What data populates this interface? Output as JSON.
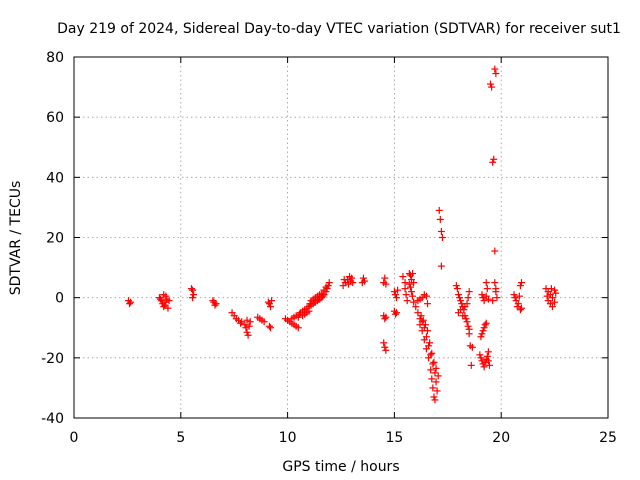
{
  "chart_data": {
    "type": "scatter",
    "title": "Day 219 of 2024, Sidereal Day-to-day VTEC variation (SDTVAR) for receiver sut1",
    "xlabel": "GPS time / hours",
    "ylabel": "SDTVAR / TECUs",
    "xlim": [
      0,
      25
    ],
    "ylim": [
      -40,
      80
    ],
    "xticks": [
      0,
      5,
      10,
      15,
      20,
      25
    ],
    "yticks": [
      -40,
      -20,
      0,
      20,
      40,
      60,
      80
    ],
    "grid": true,
    "marker": "+",
    "color": "#ff0000",
    "series": [
      {
        "name": "SDTVAR",
        "points": [
          [
            2.55,
            -1.0
          ],
          [
            2.6,
            -2.0
          ],
          [
            2.65,
            -1.5
          ],
          [
            4.0,
            0.0
          ],
          [
            4.05,
            -0.5
          ],
          [
            4.1,
            -1.0
          ],
          [
            4.15,
            -2.0
          ],
          [
            4.2,
            -3.0
          ],
          [
            4.25,
            -2.5
          ],
          [
            4.3,
            -1.5
          ],
          [
            4.35,
            -0.5
          ],
          [
            4.3,
            0.5
          ],
          [
            4.4,
            -3.5
          ],
          [
            4.45,
            -1.0
          ],
          [
            4.2,
            1.0
          ],
          [
            5.5,
            3.0
          ],
          [
            5.55,
            2.5
          ],
          [
            5.6,
            1.0
          ],
          [
            5.55,
            0.0
          ],
          [
            6.5,
            -1.0
          ],
          [
            6.55,
            -1.5
          ],
          [
            6.6,
            -2.5
          ],
          [
            6.65,
            -2.0
          ],
          [
            7.4,
            -5.0
          ],
          [
            7.5,
            -6.0
          ],
          [
            7.6,
            -7.0
          ],
          [
            7.7,
            -7.5
          ],
          [
            7.8,
            -8.5
          ],
          [
            7.85,
            -8.0
          ],
          [
            8.0,
            -9.0
          ],
          [
            8.05,
            -10.0
          ],
          [
            8.1,
            -11.5
          ],
          [
            8.15,
            -12.5
          ],
          [
            8.2,
            -9.5
          ],
          [
            8.25,
            -8.0
          ],
          [
            8.1,
            -7.5
          ],
          [
            8.6,
            -6.5
          ],
          [
            8.7,
            -7.0
          ],
          [
            8.8,
            -7.5
          ],
          [
            8.9,
            -8.0
          ],
          [
            9.1,
            -1.5
          ],
          [
            9.15,
            -2.0
          ],
          [
            9.2,
            -3.0
          ],
          [
            9.25,
            -1.0
          ],
          [
            9.15,
            -9.5
          ],
          [
            9.2,
            -10.0
          ],
          [
            9.9,
            -7.0
          ],
          [
            10.0,
            -7.5
          ],
          [
            10.1,
            -8.0
          ],
          [
            10.2,
            -8.5
          ],
          [
            10.3,
            -9.0
          ],
          [
            10.4,
            -9.5
          ],
          [
            10.5,
            -10.0
          ],
          [
            10.2,
            -7.0
          ],
          [
            10.3,
            -6.5
          ],
          [
            10.4,
            -6.0
          ],
          [
            10.5,
            -6.5
          ],
          [
            10.55,
            -5.5
          ],
          [
            10.6,
            -5.0
          ],
          [
            10.7,
            -4.5
          ],
          [
            10.8,
            -4.0
          ],
          [
            10.9,
            -3.5
          ],
          [
            10.7,
            -6.0
          ],
          [
            10.8,
            -5.5
          ],
          [
            10.9,
            -5.0
          ],
          [
            11.0,
            -4.5
          ],
          [
            11.0,
            -3.0
          ],
          [
            11.1,
            -2.5
          ],
          [
            11.2,
            -2.0
          ],
          [
            11.3,
            -1.5
          ],
          [
            11.4,
            -1.0
          ],
          [
            11.5,
            -0.5
          ],
          [
            11.6,
            0.0
          ],
          [
            11.7,
            1.0
          ],
          [
            11.8,
            2.0
          ],
          [
            11.85,
            3.0
          ],
          [
            11.9,
            4.0
          ],
          [
            11.95,
            5.0
          ],
          [
            11.1,
            -1.0
          ],
          [
            11.2,
            -0.5
          ],
          [
            11.3,
            0.0
          ],
          [
            11.4,
            0.5
          ],
          [
            11.5,
            1.0
          ],
          [
            11.6,
            1.5
          ],
          [
            11.7,
            2.5
          ],
          [
            11.8,
            3.5
          ],
          [
            11.05,
            -2.0
          ],
          [
            11.25,
            -1.5
          ],
          [
            11.45,
            -0.5
          ],
          [
            11.65,
            0.5
          ],
          [
            12.6,
            4.0
          ],
          [
            12.7,
            5.0
          ],
          [
            12.8,
            6.0
          ],
          [
            12.9,
            7.0
          ],
          [
            13.0,
            6.5
          ],
          [
            13.05,
            5.0
          ],
          [
            12.65,
            6.0
          ],
          [
            12.85,
            4.5
          ],
          [
            12.95,
            5.5
          ],
          [
            13.5,
            5.0
          ],
          [
            13.55,
            6.5
          ],
          [
            13.6,
            5.5
          ],
          [
            14.5,
            5.0
          ],
          [
            14.55,
            6.5
          ],
          [
            14.6,
            4.5
          ],
          [
            14.5,
            -6.0
          ],
          [
            14.55,
            -7.0
          ],
          [
            14.6,
            -6.5
          ],
          [
            14.5,
            -15.0
          ],
          [
            14.55,
            -16.5
          ],
          [
            14.6,
            -17.5
          ],
          [
            15.0,
            2.0
          ],
          [
            15.05,
            1.0
          ],
          [
            15.1,
            0.0
          ],
          [
            15.15,
            2.5
          ],
          [
            15.0,
            -4.5
          ],
          [
            15.05,
            -5.5
          ],
          [
            15.1,
            -5.0
          ],
          [
            15.4,
            7.0
          ],
          [
            15.5,
            5.0
          ],
          [
            15.55,
            1.0
          ],
          [
            15.6,
            -1.0
          ],
          [
            15.5,
            3.0
          ],
          [
            15.7,
            8.0
          ],
          [
            15.75,
            7.5
          ],
          [
            15.8,
            6.0
          ],
          [
            15.85,
            8.0
          ],
          [
            15.9,
            5.0
          ],
          [
            15.75,
            3.5
          ],
          [
            15.8,
            2.0
          ],
          [
            15.85,
            0.5
          ],
          [
            15.7,
            4.5
          ],
          [
            15.9,
            -1.5
          ],
          [
            16.0,
            -3.0
          ],
          [
            16.1,
            -5.0
          ],
          [
            16.2,
            -7.0
          ],
          [
            16.2,
            -9.0
          ],
          [
            16.3,
            -11.0
          ],
          [
            16.4,
            -14.0
          ],
          [
            16.5,
            -17.0
          ],
          [
            16.6,
            -20.0
          ],
          [
            16.7,
            -24.0
          ],
          [
            16.75,
            -27.0
          ],
          [
            16.8,
            -30.0
          ],
          [
            16.85,
            -33.0
          ],
          [
            16.9,
            -34.0
          ],
          [
            16.3,
            -8.0
          ],
          [
            16.4,
            -10.0
          ],
          [
            16.5,
            -13.0
          ],
          [
            16.6,
            -16.0
          ],
          [
            16.7,
            -19.0
          ],
          [
            16.8,
            -22.0
          ],
          [
            16.9,
            -25.0
          ],
          [
            16.95,
            -28.0
          ],
          [
            17.0,
            -31.0
          ],
          [
            16.25,
            -6.0
          ],
          [
            16.35,
            -7.5
          ],
          [
            16.45,
            -9.0
          ],
          [
            16.55,
            -11.0
          ],
          [
            16.65,
            -15.0
          ],
          [
            16.75,
            -18.5
          ],
          [
            16.85,
            -21.5
          ],
          [
            16.95,
            -23.5
          ],
          [
            17.05,
            -26.0
          ],
          [
            16.1,
            -1.0
          ],
          [
            16.2,
            -0.5
          ],
          [
            16.3,
            0.0
          ],
          [
            16.4,
            1.0
          ],
          [
            16.5,
            0.5
          ],
          [
            16.55,
            -2.0
          ],
          [
            17.1,
            29.0
          ],
          [
            17.15,
            26.0
          ],
          [
            17.2,
            22.0
          ],
          [
            17.25,
            20.0
          ],
          [
            17.2,
            10.5
          ],
          [
            17.9,
            4.0
          ],
          [
            17.95,
            3.0
          ],
          [
            18.0,
            1.0
          ],
          [
            18.05,
            0.0
          ],
          [
            18.1,
            -1.0
          ],
          [
            18.15,
            -2.0
          ],
          [
            18.2,
            -3.0
          ],
          [
            18.25,
            -4.0
          ],
          [
            18.3,
            -6.0
          ],
          [
            18.35,
            -7.0
          ],
          [
            18.4,
            -8.0
          ],
          [
            18.0,
            -5.0
          ],
          [
            18.1,
            -4.0
          ],
          [
            18.2,
            -6.0
          ],
          [
            18.3,
            -3.0
          ],
          [
            18.4,
            -2.0
          ],
          [
            18.45,
            0.0
          ],
          [
            18.5,
            2.0
          ],
          [
            18.45,
            -9.5
          ],
          [
            18.5,
            -10.5
          ],
          [
            18.5,
            -12.0
          ],
          [
            18.55,
            -16.0
          ],
          [
            18.6,
            -22.5
          ],
          [
            18.65,
            -16.5
          ],
          [
            19.0,
            -19.0
          ],
          [
            19.05,
            -20.0
          ],
          [
            19.1,
            -21.0
          ],
          [
            19.15,
            -22.0
          ],
          [
            19.2,
            -23.0
          ],
          [
            19.25,
            -21.5
          ],
          [
            19.3,
            -20.5
          ],
          [
            19.35,
            -19.5
          ],
          [
            19.4,
            -18.0
          ],
          [
            19.05,
            -13.0
          ],
          [
            19.1,
            -12.0
          ],
          [
            19.15,
            -11.0
          ],
          [
            19.2,
            -10.0
          ],
          [
            19.25,
            -9.0
          ],
          [
            19.3,
            -8.5
          ],
          [
            19.1,
            1.0
          ],
          [
            19.15,
            0.0
          ],
          [
            19.2,
            -1.0
          ],
          [
            19.3,
            0.5
          ],
          [
            19.4,
            -0.5
          ],
          [
            19.3,
            5.0
          ],
          [
            19.35,
            3.0
          ],
          [
            19.4,
            -21.0
          ],
          [
            19.45,
            -22.5
          ],
          [
            19.5,
            71.0
          ],
          [
            19.55,
            70.0
          ],
          [
            19.6,
            45.0
          ],
          [
            19.65,
            46.0
          ],
          [
            19.7,
            76.0
          ],
          [
            19.75,
            74.5
          ],
          [
            19.7,
            15.5
          ],
          [
            19.7,
            5.0
          ],
          [
            19.75,
            3.0
          ],
          [
            19.8,
            0.0
          ],
          [
            19.75,
            2.0
          ],
          [
            19.6,
            -1.0
          ],
          [
            20.6,
            1.0
          ],
          [
            20.65,
            0.0
          ],
          [
            20.7,
            -1.0
          ],
          [
            20.75,
            -3.0
          ],
          [
            20.8,
            -2.0
          ],
          [
            20.85,
            0.5
          ],
          [
            20.9,
            4.0
          ],
          [
            20.95,
            5.0
          ],
          [
            20.9,
            -4.0
          ],
          [
            20.95,
            -3.5
          ],
          [
            22.1,
            3.0
          ],
          [
            22.2,
            2.0
          ],
          [
            22.3,
            1.0
          ],
          [
            22.4,
            0.0
          ],
          [
            22.5,
            2.5
          ],
          [
            22.2,
            -1.0
          ],
          [
            22.3,
            -2.0
          ],
          [
            22.4,
            -3.0
          ],
          [
            22.5,
            -1.5
          ],
          [
            22.55,
            1.5
          ],
          [
            22.15,
            0.5
          ],
          [
            22.35,
            3.0
          ]
        ]
      }
    ]
  }
}
